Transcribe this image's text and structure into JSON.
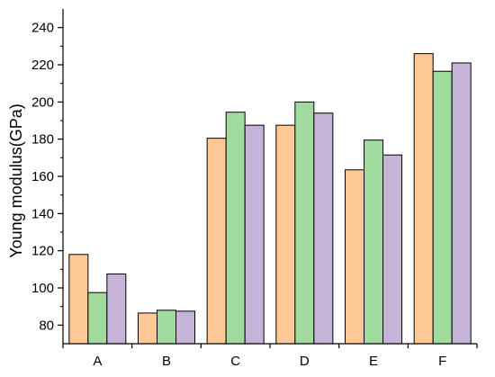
{
  "chart_data": {
    "type": "bar",
    "title": "",
    "xlabel": "",
    "ylabel": "Young modulus(GPa)",
    "categories": [
      "A",
      "B",
      "C",
      "D",
      "E",
      "F"
    ],
    "series": [
      {
        "values": [
          118,
          86.5,
          180.5,
          187.5,
          163.5,
          226
        ],
        "color": "#FFC896"
      },
      {
        "values": [
          97.5,
          88,
          194.5,
          200,
          179.5,
          216.5
        ],
        "color": "#A0DA9E"
      },
      {
        "values": [
          107.5,
          87.5,
          187.5,
          194,
          171.5,
          221
        ],
        "color": "#C5B3D8"
      }
    ],
    "ylim": [
      70,
      250
    ],
    "yticks": [
      80,
      100,
      120,
      140,
      160,
      180,
      200,
      220,
      240
    ],
    "grid": false,
    "legend": "none",
    "colors": {
      "axis": "#000000",
      "bar_stroke": "#000000"
    }
  }
}
